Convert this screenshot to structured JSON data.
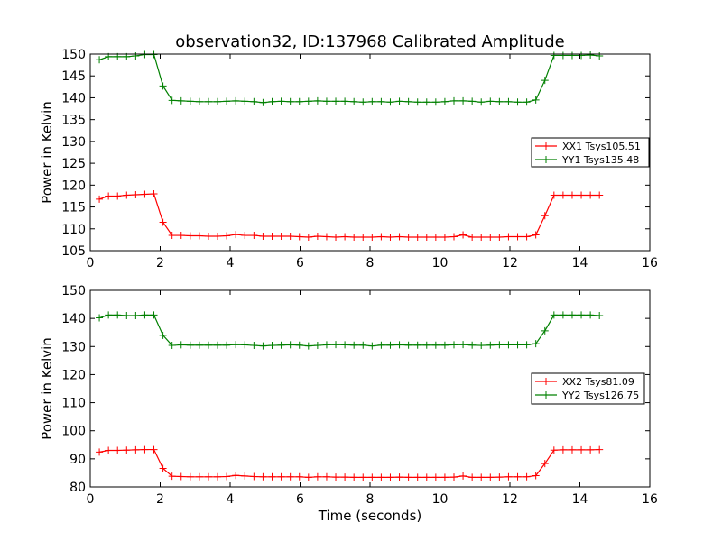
{
  "chart_data": [
    {
      "type": "line",
      "title": "observation32, ID:137968 Calibrated Amplitude",
      "xlabel": "",
      "ylabel": "Power in Kelvin",
      "xlim": [
        0,
        16
      ],
      "ylim": [
        105,
        150
      ],
      "xticks": [
        0,
        2,
        4,
        6,
        8,
        10,
        12,
        14,
        16
      ],
      "yticks": [
        105,
        110,
        115,
        120,
        125,
        130,
        135,
        140,
        145,
        150
      ],
      "grid": false,
      "legend_position": "right",
      "x": [
        0.26,
        0.52,
        0.78,
        1.04,
        1.3,
        1.56,
        1.82,
        2.08,
        2.34,
        2.6,
        2.86,
        3.12,
        3.38,
        3.64,
        3.9,
        4.16,
        4.42,
        4.68,
        4.94,
        5.2,
        5.46,
        5.72,
        5.98,
        6.24,
        6.5,
        6.76,
        7.02,
        7.28,
        7.54,
        7.8,
        8.06,
        8.32,
        8.58,
        8.84,
        9.1,
        9.36,
        9.62,
        9.88,
        10.14,
        10.4,
        10.66,
        10.92,
        11.18,
        11.44,
        11.7,
        11.96,
        12.22,
        12.48,
        12.74,
        13.0,
        13.26,
        13.52,
        13.78,
        14.04,
        14.3,
        14.56
      ],
      "series": [
        {
          "name": "XX1 Tsys105.51",
          "color": "#ff0000",
          "values": [
            116.8,
            117.5,
            117.5,
            117.7,
            117.8,
            117.9,
            118.0,
            111.5,
            108.5,
            108.5,
            108.4,
            108.4,
            108.3,
            108.3,
            108.4,
            108.7,
            108.5,
            108.5,
            108.3,
            108.3,
            108.3,
            108.3,
            108.2,
            108.1,
            108.3,
            108.2,
            108.1,
            108.2,
            108.1,
            108.1,
            108.1,
            108.2,
            108.1,
            108.2,
            108.1,
            108.1,
            108.1,
            108.1,
            108.1,
            108.2,
            108.6,
            108.1,
            108.1,
            108.1,
            108.1,
            108.2,
            108.2,
            108.2,
            108.6,
            113.0,
            117.7,
            117.7,
            117.7,
            117.7,
            117.7,
            117.7
          ]
        },
        {
          "name": "YY1 Tsys135.48",
          "color": "#008000",
          "values": [
            148.7,
            149.4,
            149.4,
            149.4,
            149.6,
            149.9,
            149.9,
            142.7,
            139.4,
            139.3,
            139.2,
            139.1,
            139.1,
            139.1,
            139.2,
            139.3,
            139.2,
            139.1,
            138.9,
            139.1,
            139.2,
            139.1,
            139.1,
            139.2,
            139.3,
            139.2,
            139.2,
            139.2,
            139.1,
            139.0,
            139.1,
            139.1,
            139.0,
            139.2,
            139.1,
            139.0,
            139.0,
            139.0,
            139.1,
            139.3,
            139.3,
            139.2,
            139.0,
            139.2,
            139.1,
            139.1,
            139.0,
            139.0,
            139.5,
            144.0,
            149.7,
            149.7,
            149.7,
            149.7,
            149.8,
            149.6
          ]
        }
      ]
    },
    {
      "type": "line",
      "title": "",
      "xlabel": "Time (seconds)",
      "ylabel": "Power in Kelvin",
      "xlim": [
        0,
        16
      ],
      "ylim": [
        80,
        150
      ],
      "xticks": [
        0,
        2,
        4,
        6,
        8,
        10,
        12,
        14,
        16
      ],
      "yticks": [
        80,
        90,
        100,
        110,
        120,
        130,
        140,
        150
      ],
      "grid": false,
      "legend_position": "right",
      "x": [
        0.26,
        0.52,
        0.78,
        1.04,
        1.3,
        1.56,
        1.82,
        2.08,
        2.34,
        2.6,
        2.86,
        3.12,
        3.38,
        3.64,
        3.9,
        4.16,
        4.42,
        4.68,
        4.94,
        5.2,
        5.46,
        5.72,
        5.98,
        6.24,
        6.5,
        6.76,
        7.02,
        7.28,
        7.54,
        7.8,
        8.06,
        8.32,
        8.58,
        8.84,
        9.1,
        9.36,
        9.62,
        9.88,
        10.14,
        10.4,
        10.66,
        10.92,
        11.18,
        11.44,
        11.7,
        11.96,
        12.22,
        12.48,
        12.74,
        13.0,
        13.26,
        13.52,
        13.78,
        14.04,
        14.3,
        14.56
      ],
      "series": [
        {
          "name": "XX2 Tsys81.09",
          "color": "#ff0000",
          "values": [
            92.4,
            93.0,
            93.0,
            93.1,
            93.2,
            93.3,
            93.3,
            86.6,
            83.8,
            83.7,
            83.6,
            83.6,
            83.6,
            83.6,
            83.7,
            84.1,
            83.9,
            83.7,
            83.6,
            83.6,
            83.6,
            83.6,
            83.6,
            83.4,
            83.6,
            83.6,
            83.5,
            83.5,
            83.4,
            83.4,
            83.4,
            83.4,
            83.4,
            83.5,
            83.4,
            83.4,
            83.4,
            83.4,
            83.4,
            83.5,
            83.9,
            83.4,
            83.4,
            83.4,
            83.5,
            83.6,
            83.6,
            83.6,
            84.0,
            88.3,
            93.1,
            93.2,
            93.2,
            93.2,
            93.2,
            93.3
          ]
        },
        {
          "name": "YY2 Tsys126.75",
          "color": "#008000",
          "values": [
            140.2,
            141.2,
            141.2,
            141.0,
            141.0,
            141.2,
            141.2,
            134.0,
            130.4,
            130.6,
            130.5,
            130.5,
            130.5,
            130.5,
            130.5,
            130.7,
            130.6,
            130.4,
            130.2,
            130.4,
            130.5,
            130.6,
            130.5,
            130.2,
            130.4,
            130.6,
            130.7,
            130.6,
            130.5,
            130.5,
            130.2,
            130.5,
            130.5,
            130.6,
            130.5,
            130.5,
            130.5,
            130.5,
            130.5,
            130.6,
            130.7,
            130.5,
            130.4,
            130.5,
            130.6,
            130.6,
            130.6,
            130.6,
            131.0,
            135.6,
            141.2,
            141.2,
            141.2,
            141.2,
            141.2,
            141.0
          ]
        }
      ]
    }
  ]
}
